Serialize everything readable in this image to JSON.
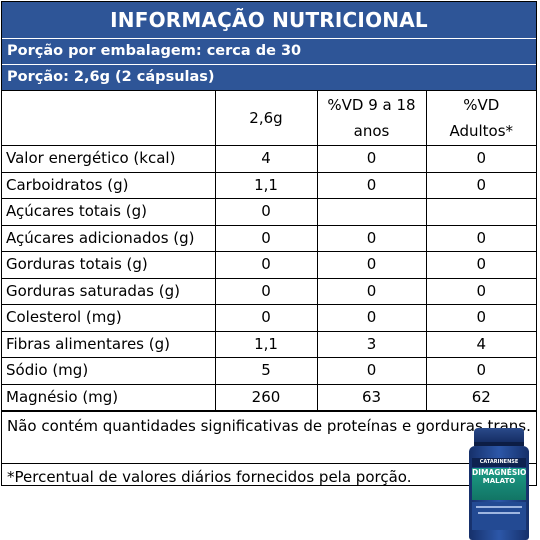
{
  "header": {
    "title": "INFORMAÇÃO NUTRICIONAL",
    "servings_per_package": "Porção por embalagem: cerca de 30",
    "serving_size": "Porção: 2,6g (2 cápsulas)"
  },
  "table": {
    "columns": [
      "",
      "2,6g",
      "%VD 9 a 18 anos",
      "%VD Adultos*"
    ],
    "column_lines": [
      [
        ""
      ],
      [
        "2,6g"
      ],
      [
        "%VD 9 a 18",
        "anos"
      ],
      [
        "%VD",
        "Adultos*"
      ]
    ],
    "rows": [
      {
        "name": "Valor energético (kcal)",
        "amount": "4",
        "vd_9_18": "0",
        "vd_adults": "0"
      },
      {
        "name": "Carboidratos (g)",
        "amount": "1,1",
        "vd_9_18": "0",
        "vd_adults": "0"
      },
      {
        "name": "Açúcares totais (g)",
        "amount": "0",
        "vd_9_18": "",
        "vd_adults": ""
      },
      {
        "name": "Açúcares adicionados (g)",
        "amount": "0",
        "vd_9_18": "0",
        "vd_adults": "0"
      },
      {
        "name": "Gorduras totais (g)",
        "amount": "0",
        "vd_9_18": "0",
        "vd_adults": "0"
      },
      {
        "name": "Gorduras saturadas (g)",
        "amount": "0",
        "vd_9_18": "0",
        "vd_adults": "0"
      },
      {
        "name": "Colesterol (mg)",
        "amount": "0",
        "vd_9_18": "0",
        "vd_adults": "0"
      },
      {
        "name": "Fibras alimentares (g)",
        "amount": "1,1",
        "vd_9_18": "3",
        "vd_adults": "4"
      },
      {
        "name": "Sódio (mg)",
        "amount": "5",
        "vd_9_18": "0",
        "vd_adults": "0"
      },
      {
        "name": "Magnésio (mg)",
        "amount": "260",
        "vd_9_18": "63",
        "vd_adults": "62"
      }
    ]
  },
  "footnotes": {
    "note1": "Não contém quantidades significativas de proteínas e gorduras trans.",
    "note2": "*Percentual de valores diários fornecidos pela porção."
  },
  "product": {
    "brand": "CATARINENSE",
    "name_line1": "DIMAGNÉSIO",
    "name_line2": "MALATO"
  },
  "colors": {
    "header_bg": "#2e5597",
    "header_text": "#ffffff"
  }
}
